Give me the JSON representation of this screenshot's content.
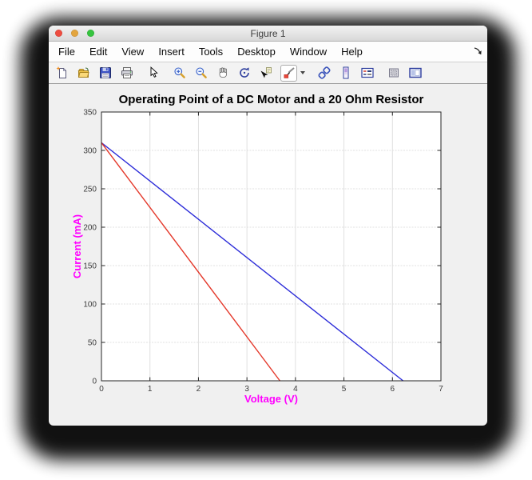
{
  "window": {
    "title": "Figure 1",
    "traffic_lights": [
      {
        "name": "close",
        "color": "#ee4d40"
      },
      {
        "name": "minimize",
        "color": "#e3a53e"
      },
      {
        "name": "zoom",
        "color": "#36c43f"
      }
    ],
    "menu": {
      "items": [
        "File",
        "Edit",
        "View",
        "Insert",
        "Tools",
        "Desktop",
        "Window",
        "Help"
      ],
      "overflow_icon": "menu-overflow-arrow"
    },
    "toolbar": {
      "icons": [
        "new-figure-icon",
        "open-file-icon",
        "save-figure-icon",
        "print-icon",
        "edit-plot-arrow-icon",
        "zoom-in-icon",
        "zoom-out-icon",
        "pan-hand-icon",
        "rotate-3d-icon",
        "data-cursor-icon",
        "brush-data-icon",
        "brush-dropdown-caret",
        "link-plot-icon",
        "insert-colorbar-icon",
        "insert-legend-icon",
        "hide-plot-tools-icon",
        "show-plot-tools-icon"
      ]
    }
  },
  "chart_data": {
    "type": "line",
    "title": "Operating Point of a DC Motor and a 20 Ohm Resistor",
    "xlabel": "Voltage (V)",
    "ylabel": "Current (mA)",
    "xlim": [
      0,
      7
    ],
    "ylim": [
      0,
      350
    ],
    "xticks": [
      0,
      1,
      2,
      3,
      4,
      5,
      6,
      7
    ],
    "yticks": [
      0,
      50,
      100,
      150,
      200,
      250,
      300,
      350
    ],
    "grid": true,
    "legend_position": "none",
    "title_color": "#000000",
    "axis_label_color": "#ff00ff",
    "tick_label_color": "#3c3c3c",
    "axes_box_color": "#262626",
    "grid_color": "#e0e0e0",
    "plot_bg": "#ffffff",
    "figure_bg": "#f0f0f0",
    "series": [
      {
        "name": "blue-line",
        "color": "#2a2ad8",
        "x": [
          0,
          6.22
        ],
        "y": [
          310,
          0
        ]
      },
      {
        "name": "red-line",
        "color": "#e4382a",
        "x": [
          0,
          3.68
        ],
        "y": [
          310,
          0
        ]
      }
    ]
  }
}
